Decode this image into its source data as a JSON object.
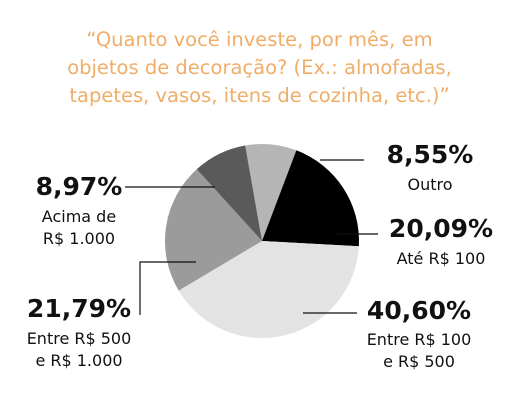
{
  "title_lines": [
    "“Quanto você investe, por mês, em",
    "objetos de decoração? (Ex.: almofadas,",
    "tapetes, vasos, itens de cozinha, etc.)”"
  ],
  "chart_data": {
    "type": "pie",
    "title": "“Quanto você investe, por mês, em objetos de decoração? (Ex.: almofadas, tapetes, vasos, itens de cozinha, etc.)”",
    "slices": [
      {
        "label": "Outro",
        "value": 8.55,
        "value_label": "8,55%",
        "color": "#b5b5b5"
      },
      {
        "label": "Até R$ 100",
        "value": 20.09,
        "value_label": "20,09%",
        "color": "#000000"
      },
      {
        "label": "Entre R$ 100 e R$ 500",
        "value": 40.6,
        "value_label": "40,60%",
        "color": "#e3e3e3"
      },
      {
        "label": "Entre R$ 500 e R$ 1.000",
        "value": 21.79,
        "value_label": "21,79%",
        "color": "#9b9b9b"
      },
      {
        "label": "Acima de R$ 1.000",
        "value": 8.97,
        "value_label": "8,97%",
        "color": "#5a5a5a"
      }
    ],
    "label_lines": [
      [
        "Outro"
      ],
      [
        "Até R$ 100"
      ],
      [
        "Entre R$ 100",
        "e R$ 500"
      ],
      [
        "Entre R$ 500",
        "e R$ 1.000"
      ],
      [
        "Acima de",
        "R$ 1.000"
      ]
    ]
  }
}
